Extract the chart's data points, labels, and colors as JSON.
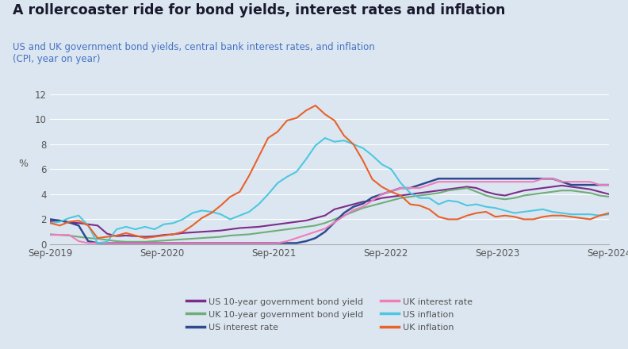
{
  "title": "A rollercoaster ride for bond yields, interest rates and inflation",
  "subtitle": "US and UK government bond yields, central bank interest rates, and inflation\n(CPI, year on year)",
  "title_color": "#1a1a2e",
  "subtitle_color": "#4472c4",
  "background_color": "#dce6f0",
  "ylabel": "%",
  "ylim": [
    0,
    12
  ],
  "yticks": [
    0,
    2,
    4,
    6,
    8,
    10,
    12
  ],
  "x_labels": [
    "Sep-2019",
    "Sep-2020",
    "Sep-2021",
    "Sep-2022",
    "Sep-2023",
    "Sep-2024"
  ],
  "legend": [
    {
      "label": "US 10-year government bond yield",
      "color": "#7b2d8b"
    },
    {
      "label": "UK 10-year government bond yield",
      "color": "#70ad7a"
    },
    {
      "label": "US interest rate",
      "color": "#2e4b8f"
    },
    {
      "label": "UK interest rate",
      "color": "#f07dbb"
    },
    {
      "label": "US inflation",
      "color": "#4dc8e0"
    },
    {
      "label": "UK inflation",
      "color": "#e8622a"
    }
  ],
  "series": {
    "us_bond": {
      "color": "#7b2d8b",
      "linewidth": 1.5,
      "values": [
        1.85,
        1.9,
        1.75,
        1.7,
        1.6,
        1.5,
        0.85,
        0.65,
        0.7,
        0.65,
        0.6,
        0.65,
        0.75,
        0.8,
        0.9,
        0.95,
        1.0,
        1.05,
        1.1,
        1.2,
        1.3,
        1.35,
        1.4,
        1.5,
        1.6,
        1.7,
        1.8,
        1.9,
        2.1,
        2.3,
        2.8,
        3.0,
        3.2,
        3.4,
        3.5,
        3.7,
        3.8,
        3.9,
        4.0,
        4.1,
        4.2,
        4.3,
        4.4,
        4.5,
        4.6,
        4.5,
        4.2,
        4.0,
        3.9,
        4.1,
        4.3,
        4.4,
        4.5,
        4.6,
        4.7,
        4.6,
        4.5,
        4.4,
        4.2,
        4.0
      ]
    },
    "uk_bond": {
      "color": "#70ad7a",
      "linewidth": 1.5,
      "values": [
        0.8,
        0.75,
        0.7,
        0.6,
        0.5,
        0.45,
        0.35,
        0.25,
        0.2,
        0.2,
        0.2,
        0.25,
        0.3,
        0.35,
        0.4,
        0.45,
        0.5,
        0.55,
        0.6,
        0.7,
        0.75,
        0.8,
        0.9,
        1.0,
        1.1,
        1.2,
        1.3,
        1.4,
        1.5,
        1.7,
        2.0,
        2.3,
        2.6,
        2.9,
        3.1,
        3.3,
        3.5,
        3.7,
        3.8,
        3.9,
        4.0,
        4.1,
        4.3,
        4.4,
        4.5,
        4.2,
        3.9,
        3.7,
        3.6,
        3.7,
        3.9,
        4.0,
        4.1,
        4.2,
        4.3,
        4.3,
        4.2,
        4.1,
        3.9,
        3.8
      ]
    },
    "us_rate": {
      "color": "#2e4b8f",
      "linewidth": 1.8,
      "values": [
        2.0,
        1.9,
        1.75,
        1.5,
        0.25,
        0.1,
        0.1,
        0.1,
        0.1,
        0.1,
        0.1,
        0.1,
        0.1,
        0.1,
        0.1,
        0.1,
        0.1,
        0.1,
        0.1,
        0.1,
        0.1,
        0.1,
        0.1,
        0.1,
        0.1,
        0.1,
        0.1,
        0.25,
        0.5,
        1.0,
        1.75,
        2.5,
        3.0,
        3.25,
        3.75,
        4.0,
        4.25,
        4.5,
        4.5,
        4.75,
        5.0,
        5.25,
        5.25,
        5.25,
        5.25,
        5.25,
        5.25,
        5.25,
        5.25,
        5.25,
        5.25,
        5.25,
        5.25,
        5.25,
        5.0,
        4.75,
        4.75,
        4.75,
        4.75,
        4.75
      ]
    },
    "uk_rate": {
      "color": "#f07dbb",
      "linewidth": 1.5,
      "values": [
        0.75,
        0.75,
        0.75,
        0.25,
        0.1,
        0.1,
        0.1,
        0.1,
        0.1,
        0.1,
        0.1,
        0.1,
        0.1,
        0.1,
        0.1,
        0.1,
        0.1,
        0.1,
        0.1,
        0.1,
        0.1,
        0.1,
        0.1,
        0.1,
        0.1,
        0.25,
        0.5,
        0.75,
        1.0,
        1.25,
        1.75,
        2.25,
        2.75,
        3.0,
        3.5,
        4.0,
        4.25,
        4.5,
        4.5,
        4.5,
        4.75,
        5.0,
        5.0,
        5.0,
        5.0,
        5.0,
        5.0,
        5.0,
        5.0,
        5.0,
        5.0,
        5.0,
        5.25,
        5.25,
        5.0,
        5.0,
        5.0,
        5.0,
        4.75,
        4.75
      ]
    },
    "us_inflation": {
      "color": "#4dc8e0",
      "linewidth": 1.5,
      "values": [
        1.7,
        1.8,
        2.1,
        2.3,
        1.5,
        0.1,
        0.2,
        1.2,
        1.4,
        1.2,
        1.4,
        1.2,
        1.6,
        1.7,
        2.0,
        2.5,
        2.7,
        2.6,
        2.4,
        2.0,
        2.3,
        2.6,
        3.2,
        4.0,
        4.9,
        5.4,
        5.8,
        6.8,
        7.9,
        8.5,
        8.2,
        8.3,
        8.0,
        7.7,
        7.1,
        6.4,
        6.0,
        4.9,
        4.1,
        3.7,
        3.7,
        3.2,
        3.5,
        3.4,
        3.1,
        3.2,
        3.0,
        2.9,
        2.7,
        2.5,
        2.6,
        2.7,
        2.8,
        2.6,
        2.5,
        2.4,
        2.4,
        2.4,
        2.3,
        2.4
      ]
    },
    "uk_inflation": {
      "color": "#e8622a",
      "linewidth": 1.5,
      "values": [
        1.7,
        1.5,
        1.8,
        1.9,
        1.5,
        0.5,
        0.6,
        0.7,
        0.9,
        0.7,
        0.5,
        0.6,
        0.7,
        0.8,
        1.0,
        1.5,
        2.1,
        2.5,
        3.1,
        3.8,
        4.2,
        5.5,
        7.0,
        8.5,
        9.0,
        9.9,
        10.1,
        10.7,
        11.1,
        10.4,
        9.9,
        8.7,
        8.0,
        6.7,
        5.2,
        4.6,
        4.2,
        3.9,
        3.2,
        3.1,
        2.8,
        2.2,
        2.0,
        2.0,
        2.3,
        2.5,
        2.6,
        2.2,
        2.3,
        2.2,
        2.0,
        2.0,
        2.2,
        2.3,
        2.3,
        2.2,
        2.1,
        2.0,
        2.3,
        2.5
      ]
    }
  }
}
